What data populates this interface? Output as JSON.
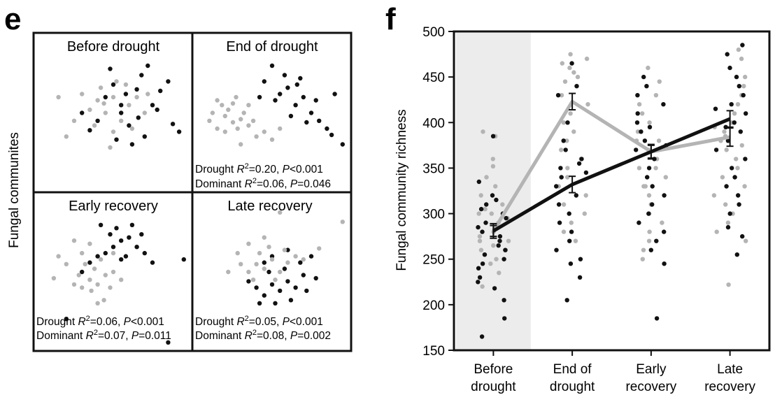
{
  "panel_e": {
    "letter": "e",
    "ylabel": "Fungal communites",
    "quadrants": [
      {
        "title": "Before drought",
        "stats": []
      },
      {
        "title": "End of drought",
        "stats": [
          {
            "label": "Drought",
            "r2": "0.20",
            "p": "<0.001"
          },
          {
            "label": "Dominant",
            "r2": "0.06",
            "p": "=0.046"
          }
        ]
      },
      {
        "title": "Early recovery",
        "stats": [
          {
            "label": "Drought",
            "r2": "0.06",
            "p": "<0.001"
          },
          {
            "label": "Dominant",
            "r2": "0.07",
            "p": "=0.011"
          }
        ]
      },
      {
        "title": "Late recovery",
        "stats": [
          {
            "label": "Drought",
            "r2": "0.05",
            "p": "<0.001"
          },
          {
            "label": "Dominant",
            "r2": "0.08",
            "p": "=0.002"
          }
        ]
      }
    ]
  },
  "panel_f": {
    "letter": "f"
  },
  "colors": {
    "black": "#111111",
    "gray": "#b4b4b4",
    "shade": "#ececec",
    "frame": "#111111"
  },
  "chart_data": [
    {
      "type": "scatter",
      "panel": "e",
      "title": "",
      "xlabel": "",
      "ylabel": "Fungal communites",
      "series": [
        {
          "name": "",
          "color": "#111111",
          "subplots": [
            [
              [
                0.55,
                0.55
              ],
              [
                0.88,
                0.43
              ],
              [
                0.7,
                0.35
              ],
              [
                0.62,
                0.3
              ],
              [
                0.6,
                0.42
              ],
              [
                0.55,
                0.5
              ],
              [
                0.65,
                0.65
              ],
              [
                0.45,
                0.6
              ],
              [
                0.75,
                0.55
              ],
              [
                0.8,
                0.64
              ],
              [
                0.68,
                0.74
              ],
              [
                0.72,
                0.8
              ],
              [
                0.4,
                0.45
              ],
              [
                0.35,
                0.39
              ],
              [
                0.3,
                0.5
              ],
              [
                0.5,
                0.68
              ],
              [
                0.85,
                0.7
              ],
              [
                0.92,
                0.38
              ],
              [
                0.78,
                0.52
              ],
              [
                0.58,
                0.62
              ],
              [
                0.52,
                0.33
              ],
              [
                0.48,
                0.78
              ],
              [
                0.66,
                0.47
              ]
            ],
            [
              [
                0.55,
                0.62
              ],
              [
                0.65,
                0.55
              ],
              [
                0.75,
                0.5
              ],
              [
                0.85,
                0.4
              ],
              [
                0.45,
                0.7
              ],
              [
                0.5,
                0.8
              ],
              [
                0.6,
                0.66
              ],
              [
                0.7,
                0.6
              ],
              [
                0.8,
                0.45
              ],
              [
                0.9,
                0.62
              ],
              [
                0.58,
                0.74
              ],
              [
                0.68,
                0.72
              ],
              [
                0.78,
                0.58
              ],
              [
                0.62,
                0.48
              ],
              [
                0.72,
                0.44
              ],
              [
                0.52,
                0.58
              ],
              [
                0.95,
                0.3
              ],
              [
                0.88,
                0.36
              ],
              [
                0.42,
                0.6
              ],
              [
                0.66,
                0.68
              ]
            ],
            [
              [
                0.45,
                0.62
              ],
              [
                0.5,
                0.66
              ],
              [
                0.55,
                0.7
              ],
              [
                0.6,
                0.72
              ],
              [
                0.65,
                0.66
              ],
              [
                0.4,
                0.6
              ],
              [
                0.48,
                0.74
              ],
              [
                0.58,
                0.6
              ],
              [
                0.7,
                0.62
              ],
              [
                0.35,
                0.56
              ],
              [
                0.52,
                0.78
              ],
              [
                0.62,
                0.8
              ],
              [
                0.3,
                0.5
              ],
              [
                0.42,
                0.8
              ],
              [
                0.55,
                0.58
              ],
              [
                0.68,
                0.74
              ],
              [
                0.75,
                0.56
              ],
              [
                0.2,
                0.2
              ],
              [
                0.85,
                0.05
              ],
              [
                0.95,
                0.58
              ]
            ],
            [
              [
                0.4,
                0.4
              ],
              [
                0.45,
                0.35
              ],
              [
                0.5,
                0.42
              ],
              [
                0.55,
                0.38
              ],
              [
                0.6,
                0.44
              ],
              [
                0.65,
                0.4
              ],
              [
                0.7,
                0.48
              ],
              [
                0.48,
                0.5
              ],
              [
                0.58,
                0.52
              ],
              [
                0.68,
                0.56
              ],
              [
                0.42,
                0.3
              ],
              [
                0.52,
                0.3
              ],
              [
                0.62,
                0.32
              ],
              [
                0.72,
                0.38
              ],
              [
                0.35,
                0.44
              ],
              [
                0.78,
                0.46
              ],
              [
                0.5,
                0.6
              ],
              [
                0.6,
                0.64
              ],
              [
                0.75,
                0.6
              ],
              [
                0.45,
                0.56
              ]
            ]
          ]
        },
        {
          "name": "",
          "color": "#b4b4b4",
          "subplots": [
            [
              [
                0.45,
                0.5
              ],
              [
                0.5,
                0.6
              ],
              [
                0.4,
                0.58
              ],
              [
                0.55,
                0.45
              ],
              [
                0.6,
                0.55
              ],
              [
                0.35,
                0.52
              ],
              [
                0.65,
                0.6
              ],
              [
                0.5,
                0.38
              ],
              [
                0.42,
                0.66
              ],
              [
                0.58,
                0.68
              ],
              [
                0.3,
                0.62
              ],
              [
                0.7,
                0.5
              ],
              [
                0.2,
                0.35
              ],
              [
                0.25,
                0.45
              ],
              [
                0.15,
                0.6
              ],
              [
                0.48,
                0.28
              ],
              [
                0.72,
                0.62
              ],
              [
                0.38,
                0.42
              ],
              [
                0.62,
                0.4
              ],
              [
                0.52,
                0.7
              ],
              [
                0.44,
                0.56
              ]
            ],
            [
              [
                0.2,
                0.48
              ],
              [
                0.25,
                0.44
              ],
              [
                0.3,
                0.46
              ],
              [
                0.22,
                0.52
              ],
              [
                0.18,
                0.55
              ],
              [
                0.28,
                0.4
              ],
              [
                0.35,
                0.42
              ],
              [
                0.15,
                0.58
              ],
              [
                0.25,
                0.56
              ],
              [
                0.32,
                0.5
              ],
              [
                0.4,
                0.35
              ],
              [
                0.12,
                0.5
              ],
              [
                0.38,
                0.45
              ],
              [
                0.45,
                0.38
              ],
              [
                0.3,
                0.3
              ],
              [
                0.5,
                0.33
              ],
              [
                0.2,
                0.38
              ],
              [
                0.55,
                0.4
              ],
              [
                0.35,
                0.55
              ],
              [
                0.1,
                0.45
              ],
              [
                0.15,
                0.4
              ],
              [
                0.27,
                0.6
              ]
            ],
            [
              [
                0.3,
                0.4
              ],
              [
                0.35,
                0.45
              ],
              [
                0.4,
                0.42
              ],
              [
                0.45,
                0.48
              ],
              [
                0.38,
                0.52
              ],
              [
                0.32,
                0.55
              ],
              [
                0.28,
                0.48
              ],
              [
                0.5,
                0.5
              ],
              [
                0.42,
                0.58
              ],
              [
                0.25,
                0.42
              ],
              [
                0.36,
                0.38
              ],
              [
                0.48,
                0.4
              ],
              [
                0.3,
                0.62
              ],
              [
                0.2,
                0.55
              ],
              [
                0.55,
                0.45
              ],
              [
                0.15,
                0.6
              ],
              [
                0.12,
                0.46
              ],
              [
                0.44,
                0.32
              ],
              [
                0.35,
                0.68
              ],
              [
                0.5,
                0.62
              ],
              [
                0.25,
                0.7
              ],
              [
                0.4,
                0.3
              ]
            ],
            [
              [
                0.35,
                0.5
              ],
              [
                0.4,
                0.55
              ],
              [
                0.45,
                0.52
              ],
              [
                0.5,
                0.58
              ],
              [
                0.55,
                0.5
              ],
              [
                0.42,
                0.62
              ],
              [
                0.3,
                0.55
              ],
              [
                0.6,
                0.56
              ],
              [
                0.48,
                0.66
              ],
              [
                0.38,
                0.45
              ],
              [
                0.52,
                0.45
              ],
              [
                0.28,
                0.62
              ],
              [
                0.22,
                0.5
              ],
              [
                0.65,
                0.6
              ],
              [
                0.58,
                0.64
              ],
              [
                0.45,
                0.72
              ],
              [
                0.35,
                0.68
              ],
              [
                0.7,
                0.58
              ],
              [
                0.95,
                0.82
              ],
              [
                0.55,
                0.88
              ],
              [
                0.8,
                0.65
              ]
            ]
          ]
        }
      ]
    },
    {
      "type": "line",
      "panel": "f",
      "title": "",
      "xlabel": "",
      "ylabel": "Fungal community richness",
      "categories": [
        "Before drought",
        "End of drought",
        "Early recovery",
        "Late recovery"
      ],
      "category_lines": [
        [
          "Before",
          "drought"
        ],
        [
          "End of",
          "drought"
        ],
        [
          "Early",
          "recovery"
        ],
        [
          "Late",
          "recovery"
        ]
      ],
      "ylim": [
        150,
        500
      ],
      "yticks": [
        150,
        200,
        250,
        300,
        350,
        400,
        450,
        500
      ],
      "grid": false,
      "shaded_category": "Before drought",
      "series": [
        {
          "name": "",
          "color": "#b4b4b4",
          "means": [
            281,
            423,
            368,
            384
          ],
          "se": [
            8,
            9,
            8,
            10
          ]
        },
        {
          "name": "",
          "color": "#111111",
          "means": [
            281,
            332,
            368,
            404
          ],
          "se": [
            6,
            9,
            7,
            9
          ]
        }
      ],
      "points": {
        "gray": [
          [
            352,
            330,
            320,
            305,
            300,
            280,
            270,
            260,
            250,
            245,
            340,
            310,
            290,
            275,
            265,
            255,
            235,
            220,
            385,
            360,
            390,
            300,
            295,
            270,
            260
          ],
          [
            475,
            470,
            465,
            460,
            455,
            450,
            445,
            430,
            420,
            410,
            400,
            390,
            380,
            370,
            360,
            350,
            340,
            330,
            320,
            310,
            300,
            290,
            280,
            270
          ],
          [
            460,
            445,
            430,
            420,
            410,
            400,
            390,
            380,
            370,
            360,
            350,
            340,
            330,
            320,
            310,
            300,
            290,
            280,
            270,
            260,
            250,
            380,
            350,
            330
          ],
          [
            480,
            470,
            450,
            440,
            430,
            420,
            410,
            400,
            395,
            390,
            385,
            380,
            370,
            360,
            350,
            340,
            330,
            320,
            310,
            300,
            290,
            280,
            270,
            222,
            375
          ]
        ],
        "black": [
          [
            315,
            320,
            305,
            300,
            295,
            290,
            285,
            280,
            275,
            270,
            265,
            260,
            255,
            250,
            245,
            240,
            230,
            225,
            218,
            205,
            185,
            165,
            385,
            335,
            310
          ],
          [
            465,
            430,
            400,
            380,
            370,
            360,
            350,
            340,
            330,
            320,
            310,
            300,
            290,
            280,
            270,
            260,
            250,
            245,
            230,
            205,
            345,
            355,
            440
          ],
          [
            450,
            440,
            430,
            420,
            410,
            400,
            390,
            380,
            370,
            360,
            350,
            340,
            330,
            320,
            310,
            300,
            290,
            280,
            270,
            260,
            245,
            185,
            395,
            375
          ],
          [
            485,
            475,
            460,
            450,
            440,
            430,
            420,
            410,
            400,
            390,
            380,
            370,
            360,
            350,
            340,
            330,
            320,
            310,
            300,
            285,
            275,
            255,
            415,
            395
          ]
        ]
      }
    }
  ]
}
